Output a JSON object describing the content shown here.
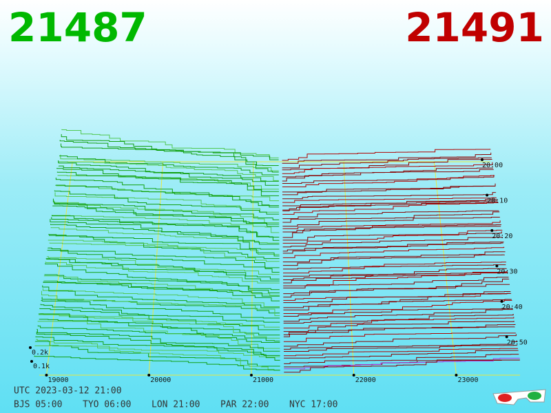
{
  "bid_price": "21487",
  "ask_price": "21491",
  "price_axis_labels": [
    "19000",
    "20000",
    "21000",
    "22000",
    "23000"
  ],
  "time_axis_labels": [
    "20:00",
    "20:10",
    "20:20",
    "20:30",
    "20:40",
    "20:50"
  ],
  "volume_axis_labels": [
    "0.2k",
    "0.1k"
  ],
  "utc_time": "UTC 2023-03-12 21:00",
  "zone_times": [
    "BJS 05:00",
    "TYO 06:00",
    "LON 21:00",
    "PAR 22:00",
    "NYC 17:00"
  ]
}
